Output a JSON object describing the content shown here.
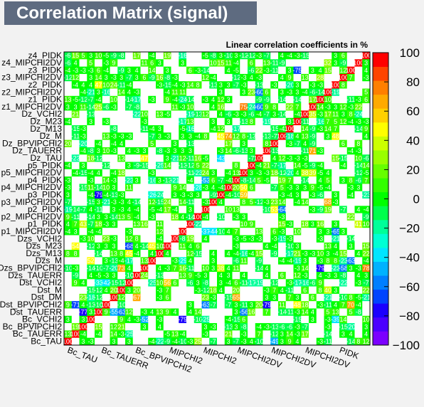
{
  "chart_data": {
    "type": "heatmap",
    "title": "Correlation Matrix (signal)",
    "subtitle": "Linear correlation coefficients in %",
    "colorbar": {
      "min": -100,
      "max": 100,
      "tick_labels": [
        "−100",
        "−80",
        "−60",
        "−40",
        "−20",
        "0",
        "20",
        "40",
        "60",
        "80",
        "100"
      ],
      "palette": [
        "#7b00ff",
        "#4b00ff",
        "#1a00ff",
        "#0044ff",
        "#007fff",
        "#00b2ff",
        "#00e5ff",
        "#00ffd4",
        "#00ff99",
        "#00ff4c",
        "#00ff00",
        "#33ff00",
        "#66ff00",
        "#99ff00",
        "#ccff00",
        "#ffff00",
        "#ffd000",
        "#ffaa00",
        "#ff7f00",
        "#ff4400",
        "#ff0000"
      ]
    },
    "y_labels": [
      "z4_PIDK",
      "z4_MIPCHI2DV",
      "z3_PIDK",
      "z3_MIPCHI2DV",
      "z2_PIDK",
      "z2_MIPCHI2DV",
      "z1_PIDK",
      "z1_MIPCHI2DV",
      "Dz_VCHI2",
      "Dz_M23",
      "Dz_M13",
      "Dz_M",
      "Dz_BPVIPCHI2",
      "Dz_TAUERR",
      "Dz_TAU",
      "p5_PIDK",
      "p5_MIPCHI2DV",
      "p4_PIDK",
      "p4_MIPCHI2DV",
      "p3_PIDK",
      "p3_MIPCHI2DV",
      "p2_PIDK",
      "p2_MIPCHI2DV",
      "p1_PIDK",
      "p1_MIPCHI2DV",
      "Dzs_VCHI2",
      "Dzs_M23",
      "Dzs_M13",
      "Dzs_M",
      "Dzs_BPVIPCHI2",
      "Dzs_TAUERR",
      "Dst_VCHI2",
      "Dst_M",
      "Dst_DM",
      "Dst_BPVIPCHI2",
      "Dst_TAUERR",
      "Bc_VCHI2",
      "Bc_BPVIPCHI2",
      "Bc_TAUERR",
      "Bc_TAU"
    ],
    "x_labels_visible": [
      "Bc_TAU",
      "Bc_TAUERR",
      "Bc_BPVIPCHI2",
      "MIPCHI2",
      "MIPCHI2",
      "MIPCHI2DV",
      "MIPCHI2DV",
      "MIPCHI2DV",
      "PIDK"
    ]
  }
}
